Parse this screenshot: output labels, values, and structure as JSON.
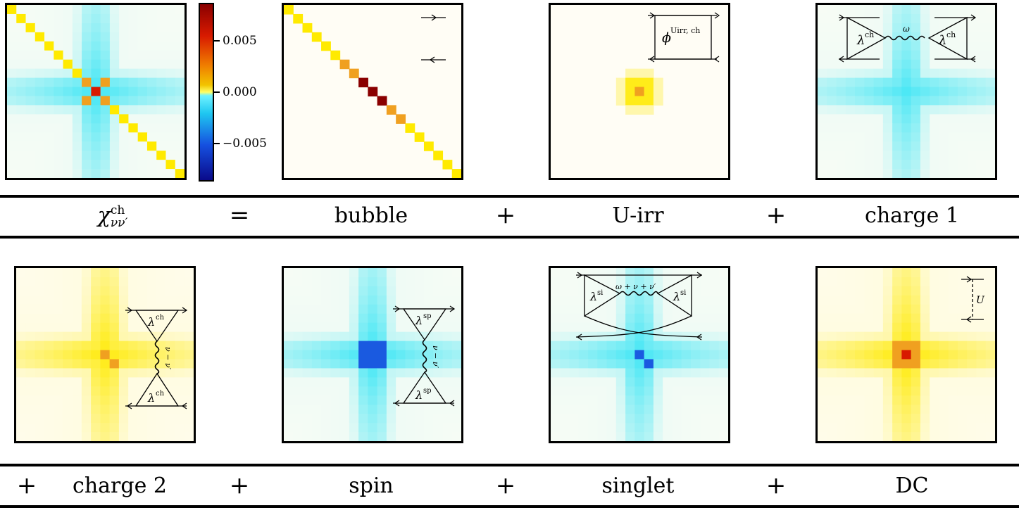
{
  "colorbar": {
    "ticks": [
      "0.005",
      "0.000",
      "−0.005"
    ]
  },
  "row1": {
    "lhs_label": "χ",
    "lhs_sup": "ch",
    "lhs_sub": "νν′",
    "equals": "=",
    "labels": [
      "bubble",
      "U-irr",
      "charge 1"
    ],
    "plus": "+"
  },
  "row2": {
    "labels": [
      "charge 2",
      "spin",
      "singlet",
      "DC"
    ],
    "plus": "+"
  },
  "diagrams": {
    "uirr_phi": "ϕ",
    "uirr_sup": "Uirr, ch",
    "lambda": "λ",
    "ch": "ch",
    "sp": "sp",
    "si": "si",
    "omega": "ω",
    "nu_minus": "ν − ν′",
    "omega_sum": "ω + ν + ν′",
    "U": "U"
  },
  "colors": {
    "cyan": "#2ee4f5",
    "yellow": "#ffea00",
    "orange": "#f0a020",
    "red": "#d81a00",
    "darkred": "#8a0000",
    "blue": "#1a5ae0"
  }
}
